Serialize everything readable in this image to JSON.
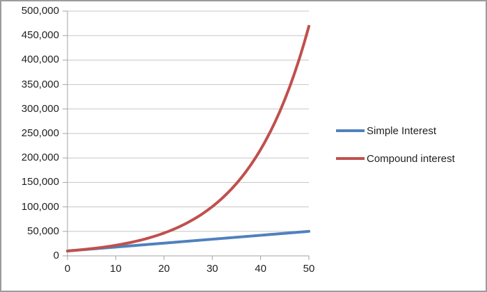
{
  "window": {
    "background_color": "#ffffff",
    "border_color": "#9b9b9b"
  },
  "chart_data": {
    "type": "line",
    "title": "",
    "xlabel": "",
    "ylabel": "",
    "xlim": [
      0,
      50
    ],
    "ylim": [
      0,
      500000
    ],
    "grid": "horizontal",
    "legend_position": "right",
    "gridline_color": "#c6c6c6",
    "axis_color": "#a3a3a3",
    "tick_label_color": "#1f1f1f",
    "x": [
      0,
      1,
      2,
      3,
      4,
      5,
      6,
      7,
      8,
      9,
      10,
      11,
      12,
      13,
      14,
      15,
      16,
      17,
      18,
      19,
      20,
      21,
      22,
      23,
      24,
      25,
      26,
      27,
      28,
      29,
      30,
      31,
      32,
      33,
      34,
      35,
      36,
      37,
      38,
      39,
      40,
      41,
      42,
      43,
      44,
      45,
      46,
      47,
      48,
      49,
      50
    ],
    "series": [
      {
        "name": "Simple Interest",
        "color": "#4f81bd",
        "values": [
          10000,
          10800,
          11600,
          12400,
          13200,
          14000,
          14800,
          15600,
          16400,
          17200,
          18000,
          18800,
          19600,
          20400,
          21200,
          22000,
          22800,
          23600,
          24400,
          25200,
          26000,
          26800,
          27600,
          28400,
          29200,
          30000,
          30800,
          31600,
          32400,
          33200,
          34000,
          34800,
          35600,
          36400,
          37200,
          38000,
          38800,
          39600,
          40400,
          41200,
          42000,
          42800,
          43600,
          44400,
          45200,
          46000,
          46800,
          47600,
          48400,
          49200,
          50000
        ]
      },
      {
        "name": "Compound interest",
        "color": "#c0504d",
        "values": [
          10000,
          10800,
          11664,
          12597,
          13605,
          14693,
          15869,
          17138,
          18509,
          19990,
          21589,
          23316,
          25182,
          27196,
          29372,
          31722,
          34259,
          37000,
          39960,
          43157,
          46610,
          50338,
          54365,
          58715,
          63412,
          68485,
          73964,
          79881,
          86271,
          93173,
          100627,
          108677,
          117371,
          126761,
          136901,
          147853,
          159681,
          172456,
          186252,
          201153,
          217245,
          234625,
          253395,
          273667,
          295560,
          319204,
          344740,
          372320,
          402105,
          434274,
          469016
        ]
      }
    ],
    "x_ticks": [
      0,
      10,
      20,
      30,
      40,
      50
    ],
    "x_tick_labels": [
      "0",
      "10",
      "20",
      "30",
      "40",
      "50"
    ],
    "y_ticks": [
      0,
      50000,
      100000,
      150000,
      200000,
      250000,
      300000,
      350000,
      400000,
      450000,
      500000
    ],
    "y_tick_labels": [
      "0",
      "50,000",
      "100,000",
      "150,000",
      "200,000",
      "250,000",
      "300,000",
      "350,000",
      "400,000",
      "450,000",
      "500,000"
    ]
  },
  "legend": {
    "items": [
      {
        "label": "Simple Interest",
        "color": "#4f81bd"
      },
      {
        "label": "Compound interest",
        "color": "#c0504d"
      }
    ]
  }
}
